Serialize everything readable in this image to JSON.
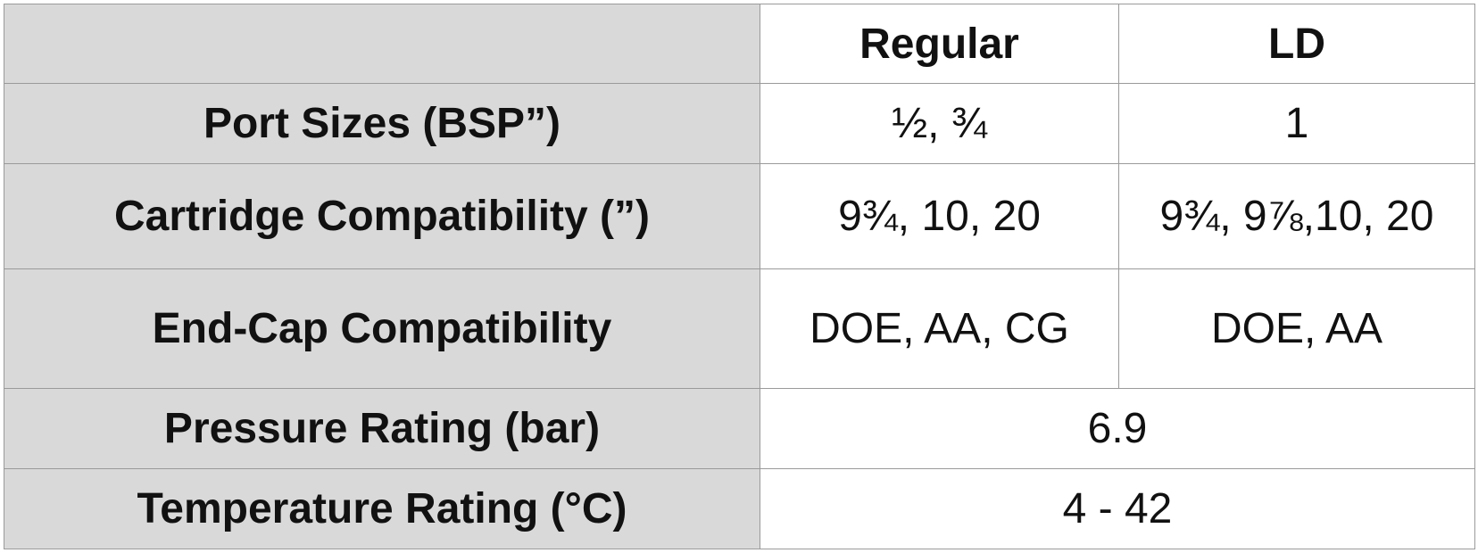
{
  "table": {
    "columns": [
      "Regular",
      "LD"
    ],
    "rows": [
      {
        "label": "Port Sizes (BSP”)",
        "values": [
          "½, ¾",
          "1"
        ]
      },
      {
        "label": "Cartridge Compatibility (”)",
        "values": [
          "9¾, 10, 20",
          "9¾, 9⅞,10, 20"
        ]
      },
      {
        "label": "End-Cap Compatibility",
        "values": [
          "DOE, AA, CG",
          "DOE, AA"
        ]
      },
      {
        "label": "Pressure Rating (bar)",
        "values": [
          "6.9"
        ]
      },
      {
        "label": "Temperature Rating (°C)",
        "values": [
          "4 - 42"
        ]
      }
    ]
  }
}
